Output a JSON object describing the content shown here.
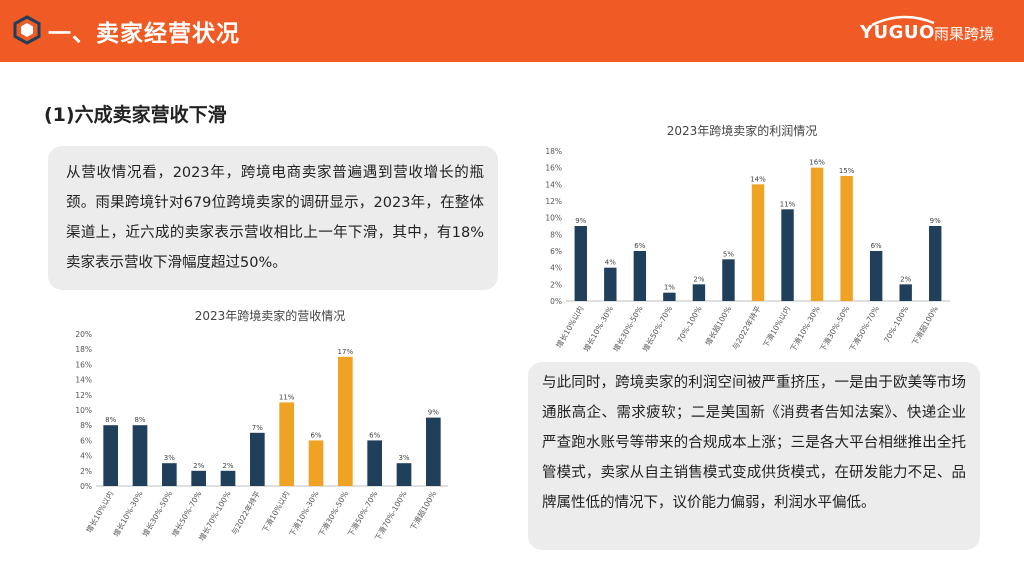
{
  "header": {
    "title": "一、卖家经营状况",
    "brand": "YUGUO",
    "brand_cn": "雨果跨境",
    "bg_color": "#f05a24"
  },
  "subtitle": "(1)六成卖家营收下滑",
  "paragraph1": "从营收情况看，2023年，跨境电商卖家普遍遇到营收增长的瓶颈。雨果跨境针对679位跨境卖家的调研显示，2023年，在整体渠道上，近六成的卖家表示营收相比上一年下滑，其中，有18%卖家表示营收下滑幅度超过50%。",
  "paragraph2": "与此同时，跨境卖家的利润空间被严重挤压，一是由于欧美等市场通胀高企、需求疲软；二是美国新《消费者告知法案》、快递企业严查跑水账号等带来的合规成本上涨；三是各大平台相继推出全托管模式，卖家从自主销售模式变成供货模式，在研发能力不足、品牌属性低的情况下，议价能力偏弱，利润水平偏低。",
  "colors": {
    "increase": "#1f3f5b",
    "decrease": "#f0a224",
    "axis": "#bfbfbf"
  },
  "chart_data": [
    {
      "type": "bar",
      "title": "2023年跨境卖家的营收情况",
      "categories": [
        "增长10%以内",
        "增长10%-30%",
        "增长30%-50%",
        "增长50%-70%",
        "增长70%-100%",
        "与2022年持平",
        "下滑10%以内",
        "下滑10%-30%",
        "下滑30%-50%",
        "下滑50%-70%",
        "下滑70%-100%",
        "下滑超100%"
      ],
      "values": [
        8,
        8,
        3,
        2,
        2,
        7,
        11,
        6,
        17,
        6,
        3,
        9
      ],
      "value_labels": [
        "8%",
        "8%",
        "3%",
        "2%",
        "2%",
        "7%",
        "11%",
        "6%",
        "17%",
        "6%",
        "3%",
        "9%"
      ],
      "highlight": [
        false,
        false,
        false,
        false,
        false,
        false,
        true,
        true,
        true,
        false,
        false,
        false
      ],
      "ylim": [
        0,
        20
      ],
      "yticks": [
        "0%",
        "2%",
        "4%",
        "6%",
        "8%",
        "10%",
        "12%",
        "14%",
        "16%",
        "18%",
        "20%"
      ],
      "grid": false
    },
    {
      "type": "bar",
      "title": "2023年跨境卖家的利润情况",
      "categories": [
        "增长10%以内",
        "增长10%-30%",
        "增长30%-50%",
        "增长50%-70%",
        "70%-100%",
        "增长超100%",
        "与2022年持平",
        "下滑10%以内",
        "下滑10%-30%",
        "下滑30%-50%",
        "下滑50%-70%",
        "70%-100%",
        "下滑超100%"
      ],
      "values": [
        9,
        4,
        6,
        1,
        2,
        5,
        14,
        11,
        16,
        15,
        6,
        2,
        9
      ],
      "value_labels": [
        "9%",
        "4%",
        "6%",
        "1%",
        "2%",
        "5%",
        "14%",
        "11%",
        "16%",
        "15%",
        "6%",
        "2%",
        "9%"
      ],
      "highlight": [
        false,
        false,
        false,
        false,
        false,
        false,
        true,
        false,
        true,
        true,
        false,
        false,
        false
      ],
      "ylim": [
        0,
        18
      ],
      "yticks": [
        "0%",
        "2%",
        "4%",
        "6%",
        "8%",
        "10%",
        "12%",
        "14%",
        "16%",
        "18%"
      ],
      "grid": false
    }
  ]
}
